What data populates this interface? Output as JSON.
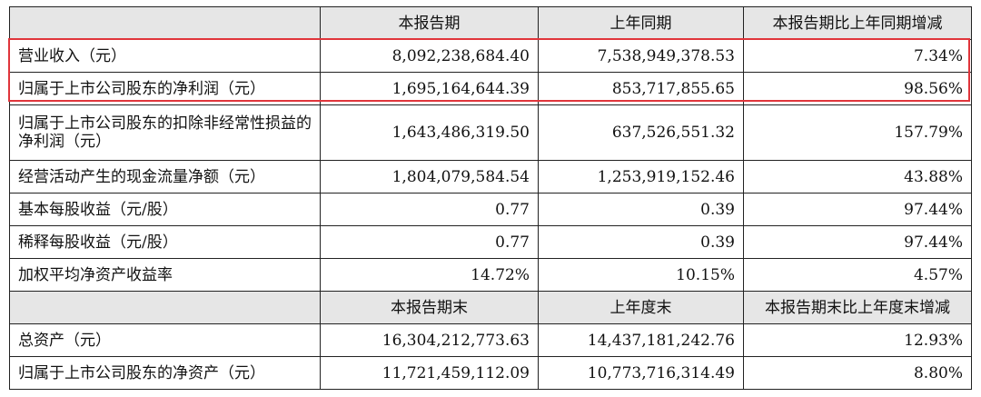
{
  "header1": [
    "",
    "本报告期",
    "上年同期",
    "本报告期比上年同期增减"
  ],
  "rows1": [
    [
      "营业收入（元）",
      "8,092,238,684.40",
      "7,538,949,378.53",
      "7.34%"
    ],
    [
      "归属于上市公司股东的净利润（元）",
      "1,695,164,644.39",
      "853,717,855.65",
      "98.56%"
    ],
    [
      "归属于上市公司股东的扣除非经常性损益的净利润（元）",
      "1,643,486,319.50",
      "637,526,551.32",
      "157.79%"
    ],
    [
      "经营活动产生的现金流量净额（元）",
      "1,804,079,584.54",
      "1,253,919,152.46",
      "43.88%"
    ],
    [
      "基本每股收益（元/股）",
      "0.77",
      "0.39",
      "97.44%"
    ],
    [
      "稀释每股收益（元/股）",
      "0.77",
      "0.39",
      "97.44%"
    ],
    [
      "加权平均净资产收益率",
      "14.72%",
      "10.15%",
      "4.57%"
    ]
  ],
  "header2": [
    "",
    "本报告期末",
    "上年度末",
    "本报告期末比上年度末增减"
  ],
  "rows2": [
    [
      "总资产（元）",
      "16,304,212,773.63",
      "14,437,181,242.76",
      "12.93%"
    ],
    [
      "归属于上市公司股东的净资产（元）",
      "11,721,459,112.09",
      "10,773,716,314.49",
      "8.80%"
    ]
  ],
  "highlight_color": "#e0353b",
  "header_bg": "#e6e6e6"
}
